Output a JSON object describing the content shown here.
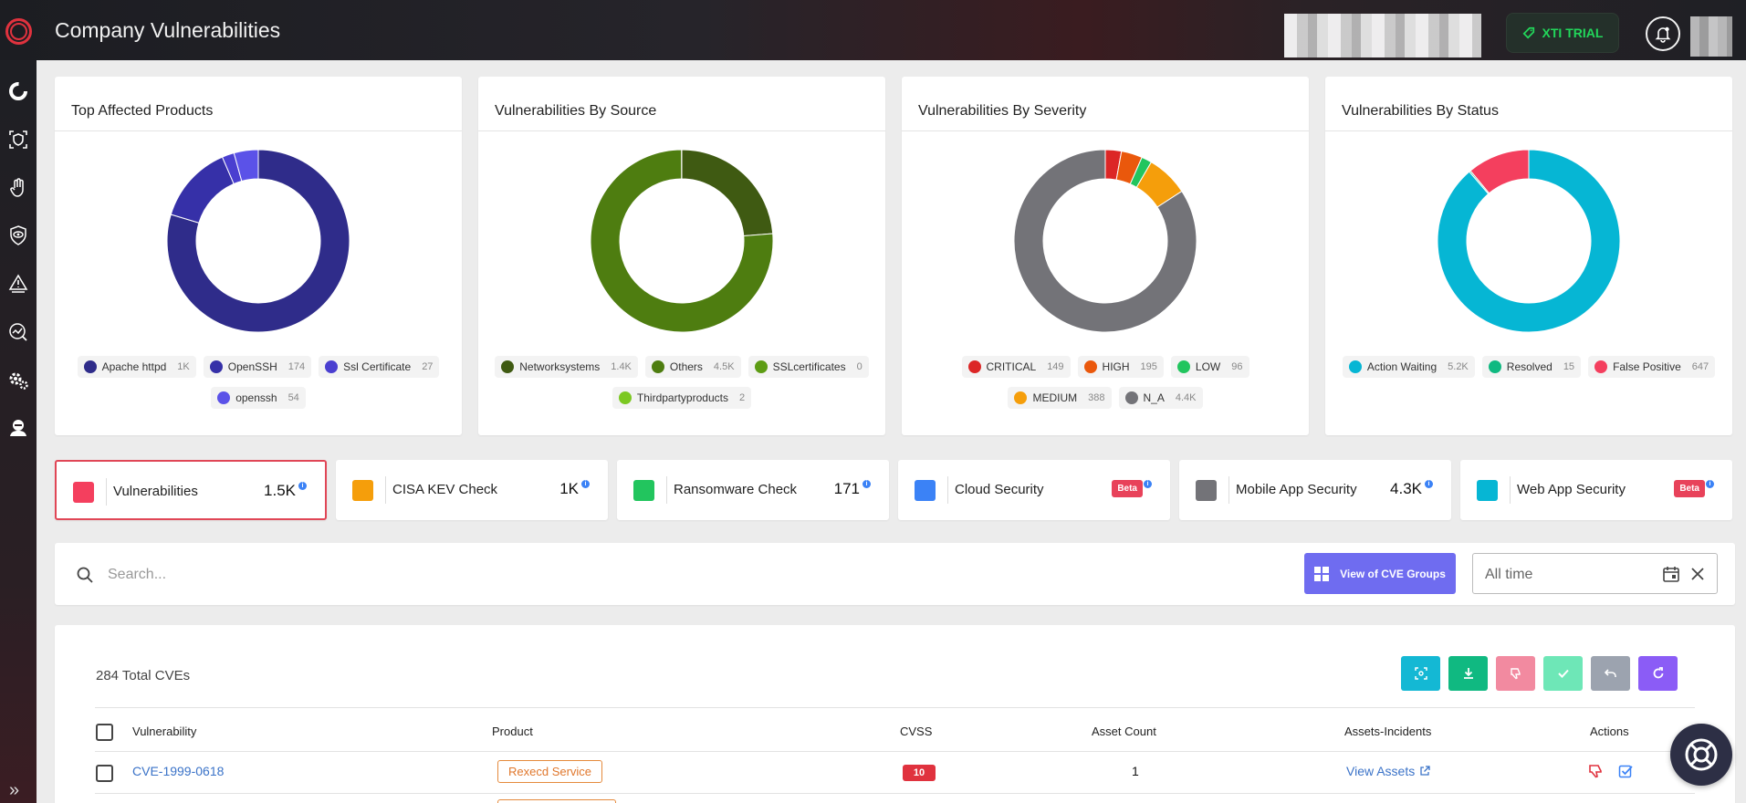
{
  "header": {
    "title": "Company Vulnerabilities",
    "trial_label": "XTI TRIAL"
  },
  "charts": [
    {
      "title": "Top Affected Products",
      "legend": [
        {
          "label": "Apache httpd",
          "count": "1K",
          "color": "#2f2c8a"
        },
        {
          "label": "OpenSSH",
          "count": "174",
          "color": "#3630a8"
        },
        {
          "label": "Ssl Certificate",
          "count": "27",
          "color": "#4a3fd0"
        },
        {
          "label": "openssh",
          "count": "54",
          "color": "#5b52e8"
        }
      ]
    },
    {
      "title": "Vulnerabilities By Source",
      "legend": [
        {
          "label": "Networksystems",
          "count": "1.4K",
          "color": "#3f5a12"
        },
        {
          "label": "Others",
          "count": "4.5K",
          "color": "#4e7d10"
        },
        {
          "label": "SSLcertificates",
          "count": "0",
          "color": "#5d9c14"
        },
        {
          "label": "Thirdpartyproducts",
          "count": "2",
          "color": "#7cc822"
        }
      ]
    },
    {
      "title": "Vulnerabilities By Severity",
      "legend": [
        {
          "label": "CRITICAL",
          "count": "149",
          "color": "#dc2626"
        },
        {
          "label": "HIGH",
          "count": "195",
          "color": "#ea580c"
        },
        {
          "label": "LOW",
          "count": "96",
          "color": "#22c55e"
        },
        {
          "label": "MEDIUM",
          "count": "388",
          "color": "#f59e0b"
        },
        {
          "label": "N_A",
          "count": "4.4K",
          "color": "#737378"
        }
      ]
    },
    {
      "title": "Vulnerabilities By Status",
      "legend": [
        {
          "label": "Action Waiting",
          "count": "5.2K",
          "color": "#06b6d4"
        },
        {
          "label": "Resolved",
          "count": "15",
          "color": "#10b981"
        },
        {
          "label": "False Positive",
          "count": "647",
          "color": "#f43f5e"
        }
      ]
    }
  ],
  "chart_data": [
    {
      "type": "pie",
      "title": "Top Affected Products",
      "categories": [
        "Apache httpd",
        "OpenSSH",
        "Ssl Certificate",
        "openssh"
      ],
      "values": [
        1000,
        174,
        27,
        54
      ]
    },
    {
      "type": "pie",
      "title": "Vulnerabilities By Source",
      "categories": [
        "Networksystems",
        "Others",
        "SSLcertificates",
        "Thirdpartyproducts"
      ],
      "values": [
        1400,
        4500,
        0,
        2
      ]
    },
    {
      "type": "pie",
      "title": "Vulnerabilities By Severity",
      "categories": [
        "CRITICAL",
        "HIGH",
        "LOW",
        "MEDIUM",
        "N_A"
      ],
      "values": [
        149,
        195,
        96,
        388,
        4400
      ]
    },
    {
      "type": "pie",
      "title": "Vulnerabilities By Status",
      "categories": [
        "Action Waiting",
        "Resolved",
        "False Positive"
      ],
      "values": [
        5200,
        15,
        647
      ]
    }
  ],
  "tiles": [
    {
      "label": "Vulnerabilities",
      "value": "1.5K",
      "color": "#f43f5e"
    },
    {
      "label": "CISA KEV Check",
      "value": "1K",
      "color": "#f59e0b"
    },
    {
      "label": "Ransomware Check",
      "value": "171",
      "color": "#22c55e"
    },
    {
      "label": "Cloud Security",
      "badge": "Beta",
      "color": "#3b82f6"
    },
    {
      "label": "Mobile App Security",
      "value": "4.3K",
      "color": "#737378"
    },
    {
      "label": "Web App Security",
      "badge": "Beta",
      "color": "#06b6d4"
    }
  ],
  "search": {
    "placeholder": "Search...",
    "cve_groups_label": "View of CVE Groups",
    "date_value": "All time"
  },
  "table": {
    "total_label": "284 Total CVEs",
    "columns": {
      "vulnerability": "Vulnerability",
      "product": "Product",
      "cvss": "CVSS",
      "asset_count": "Asset Count",
      "assets_incidents": "Assets-Incidents",
      "actions": "Actions"
    },
    "rows": [
      {
        "cve": "CVE-1999-0618",
        "product": "Rexecd Service",
        "cvss": "10",
        "asset_count": "1",
        "assets_link": "View Assets"
      }
    ]
  }
}
